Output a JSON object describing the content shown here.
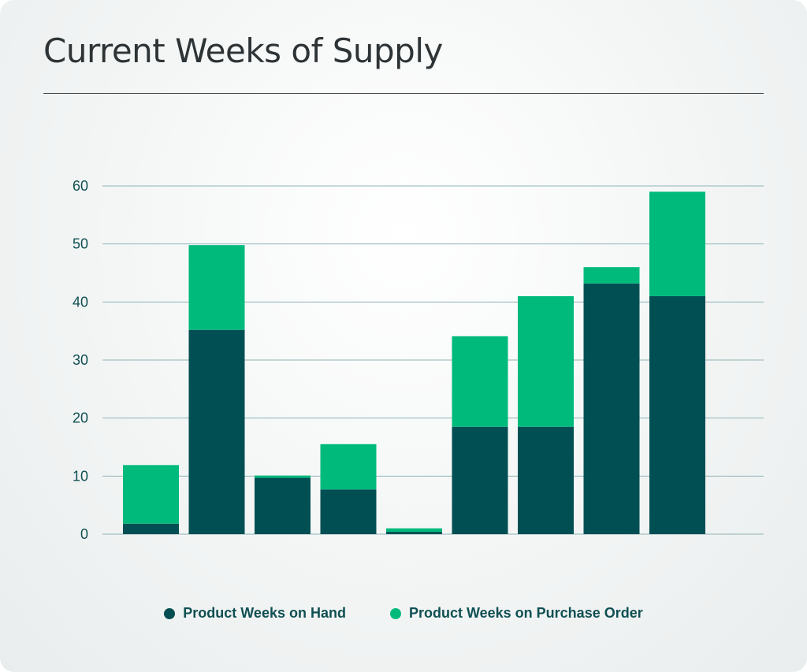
{
  "title": "Current Weeks of Supply",
  "colors": {
    "on_hand": "#024f53",
    "purchase_order": "#00ba7c",
    "grid": "#8fb3b5",
    "tick": "#0f4f52"
  },
  "legend": [
    {
      "label": "Product Weeks on Hand",
      "color": "#024f53"
    },
    {
      "label": "Product Weeks on Purchase Order",
      "color": "#00ba7c"
    }
  ],
  "chart_data": {
    "type": "bar",
    "stacked": true,
    "categories": [
      "",
      "",
      "",
      "",
      "",
      "",
      "",
      "",
      ""
    ],
    "series": [
      {
        "name": "Product Weeks on Hand",
        "values": [
          1.8,
          35.2,
          9.7,
          7.7,
          0.4,
          18.5,
          18.5,
          43.2,
          41.0
        ]
      },
      {
        "name": "Product Weeks on Purchase Order",
        "values": [
          10.1,
          14.6,
          0.4,
          7.8,
          0.6,
          15.6,
          22.5,
          2.8,
          18.0
        ]
      }
    ],
    "y_ticks": [
      "0",
      "10",
      "20",
      "30",
      "40",
      "50",
      "60"
    ],
    "ylim": [
      0,
      60
    ],
    "grid": true,
    "legend_position": "bottom"
  }
}
